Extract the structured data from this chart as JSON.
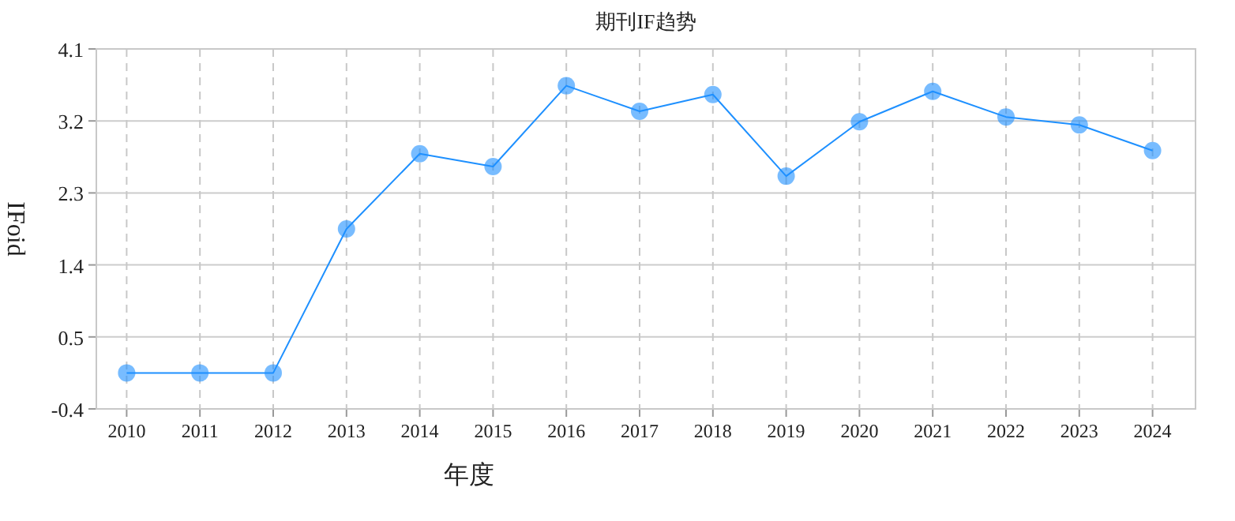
{
  "chart_data": {
    "type": "line",
    "title": "期刊IF趋势",
    "xlabel": "年度",
    "ylabel": "IFoid",
    "categories": [
      "2010",
      "2011",
      "2012",
      "2013",
      "2014",
      "2015",
      "2016",
      "2017",
      "2018",
      "2019",
      "2020",
      "2021",
      "2022",
      "2023",
      "2024"
    ],
    "series": [
      {
        "color": "#1e90ff",
        "values": [
          0.05,
          0.05,
          0.05,
          1.85,
          2.79,
          2.63,
          3.64,
          3.32,
          3.53,
          2.51,
          3.19,
          3.57,
          3.25,
          3.15,
          2.83
        ]
      }
    ],
    "ylim": [
      -0.4,
      4.1
    ],
    "yticks": [
      -0.4,
      0.5,
      1.4,
      2.3,
      3.2,
      4.1
    ],
    "grid": true,
    "marker": "circle",
    "line_style": "solid"
  }
}
